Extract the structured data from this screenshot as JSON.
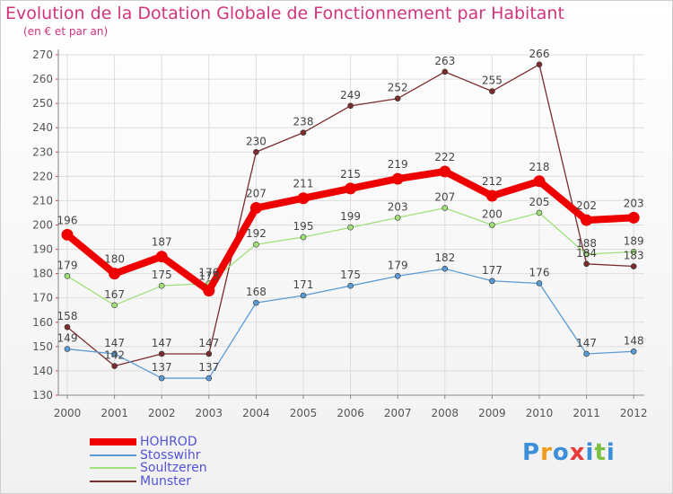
{
  "title": "Evolution de la Dotation Globale de Fonctionnement par Habitant",
  "subtitle": "(en € et par an)",
  "logo": {
    "text": "Proxiti",
    "colors": [
      "#3b8fd9",
      "#f29b1d",
      "#3b8fd9",
      "#e73c3c",
      "#3b8fd9",
      "#7cc242",
      "#3b8fd9"
    ]
  },
  "chart_data": {
    "type": "line",
    "title": "Evolution de la Dotation Globale de Fonctionnement par Habitant",
    "subtitle": "(en € et par an)",
    "xlabel": "",
    "ylabel": "",
    "x": [
      "2000",
      "2001",
      "2002",
      "2003",
      "2004",
      "2005",
      "2006",
      "2007",
      "2008",
      "2009",
      "2010",
      "2011",
      "2012"
    ],
    "ylim": [
      130,
      270
    ],
    "yticks": [
      130,
      140,
      150,
      160,
      170,
      180,
      190,
      200,
      210,
      220,
      230,
      240,
      250,
      260,
      270
    ],
    "grid": true,
    "legend_position": "bottom-left",
    "series": [
      {
        "name": "HOHROD",
        "color": "#ee0000",
        "line_width": 8,
        "marker_radius": 6.5,
        "values": [
          196,
          180,
          187,
          173,
          207,
          211,
          215,
          219,
          222,
          212,
          218,
          202,
          203
        ],
        "labels": [
          "196",
          "180",
          "187",
          "173",
          "207",
          "211",
          "215",
          "219",
          "222",
          "212",
          "218",
          "202",
          "203"
        ]
      },
      {
        "name": "Stosswihr",
        "color": "#5b9bd5",
        "line_width": 1.3,
        "marker_radius": 3,
        "values": [
          149,
          147,
          137,
          137,
          168,
          171,
          175,
          179,
          182,
          177,
          176,
          147,
          148
        ],
        "labels": [
          "149",
          "147",
          "137",
          "137",
          "168",
          "171",
          "175",
          "179",
          "182",
          "177",
          "176",
          "147",
          "148"
        ]
      },
      {
        "name": "Soultzeren",
        "color": "#a0e07a",
        "line_width": 1.3,
        "marker_radius": 3,
        "values": [
          179,
          167,
          175,
          176,
          192,
          195,
          199,
          203,
          207,
          200,
          205,
          188,
          189
        ],
        "labels": [
          "179",
          "167",
          "175",
          "176",
          "192",
          "195",
          "199",
          "203",
          "207",
          "200",
          "205",
          "188",
          "189"
        ]
      },
      {
        "name": "Munster",
        "color": "#7b2c2c",
        "line_width": 1.3,
        "marker_radius": 3,
        "values": [
          158,
          142,
          147,
          147,
          230,
          238,
          249,
          252,
          263,
          255,
          266,
          184,
          183
        ],
        "labels": [
          "158",
          "142",
          "147",
          "147",
          "230",
          "238",
          "249",
          "252",
          "263",
          "255",
          "266",
          "184",
          "183"
        ]
      }
    ]
  }
}
